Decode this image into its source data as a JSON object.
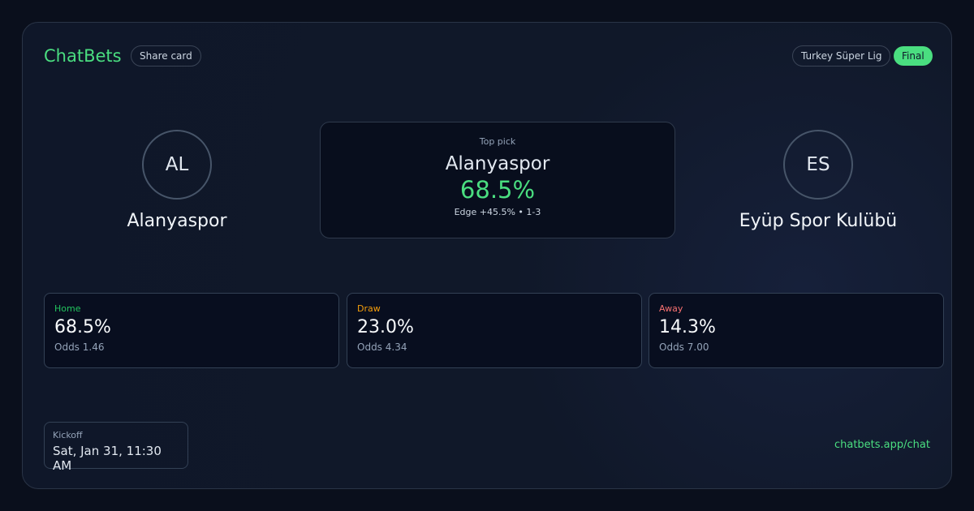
{
  "brand": "ChatBets",
  "share_label": "Share card",
  "league": "Turkey Süper Lig",
  "status": "Final",
  "home": {
    "initials": "AL",
    "name": "Alanyaspor"
  },
  "away": {
    "initials": "ES",
    "name": "Eyüp Spor Kulübü"
  },
  "top_pick": {
    "label": "Top pick",
    "team": "Alanyaspor",
    "probability": "68.5%",
    "edge": "Edge +45.5% • 1-3"
  },
  "outcomes": [
    {
      "label": "Home",
      "probability": "68.5%",
      "odds": "Odds 1.46",
      "color": "#22c55e"
    },
    {
      "label": "Draw",
      "probability": "23.0%",
      "odds": "Odds 4.34",
      "color": "#f59e0b"
    },
    {
      "label": "Away",
      "probability": "14.3%",
      "odds": "Odds 7.00",
      "color": "#f87171"
    }
  ],
  "kickoff": {
    "label": "Kickoff",
    "value": "Sat, Jan 31, 11:30 AM"
  },
  "url": "chatbets.app/chat"
}
